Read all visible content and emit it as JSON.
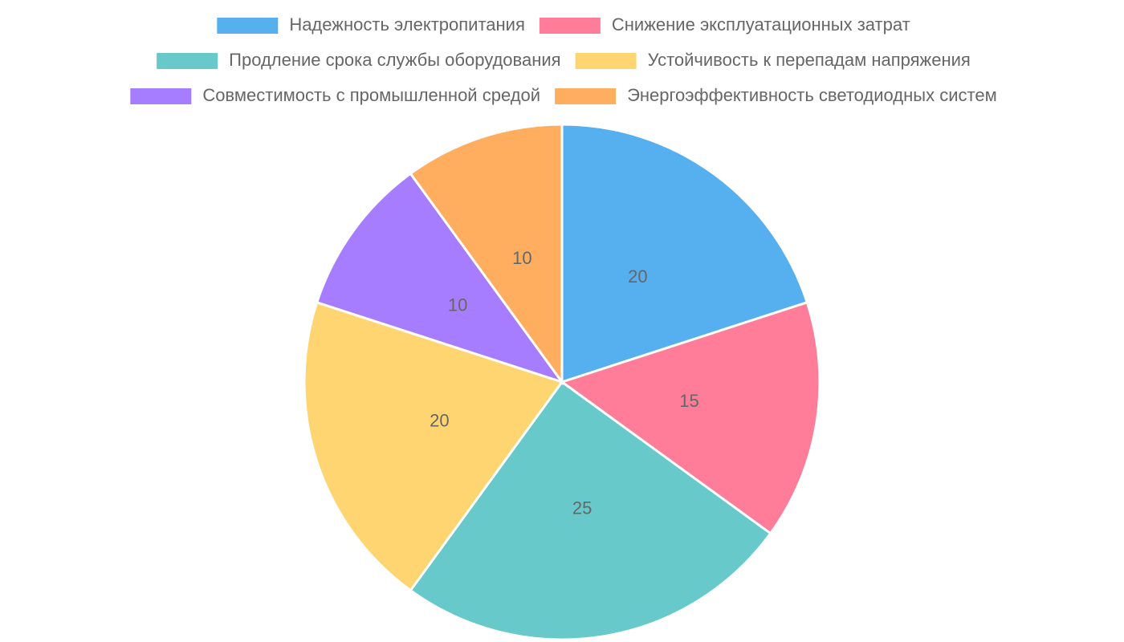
{
  "chart_data": {
    "type": "pie",
    "categories": [
      "Надежность электропитания",
      "Снижение эксплуатационных затрат",
      "Продление срока службы оборудования",
      "Устойчивость к перепадам напряжения",
      "Совместимость с промышленной средой",
      "Энергоэффективность светодиодных систем"
    ],
    "values": [
      20,
      15,
      25,
      20,
      10,
      10
    ],
    "colors": [
      "#56afef",
      "#ff7d98",
      "#67c9c9",
      "#ffd572",
      "#a77dff",
      "#ffad5e"
    ],
    "legend": "top"
  }
}
